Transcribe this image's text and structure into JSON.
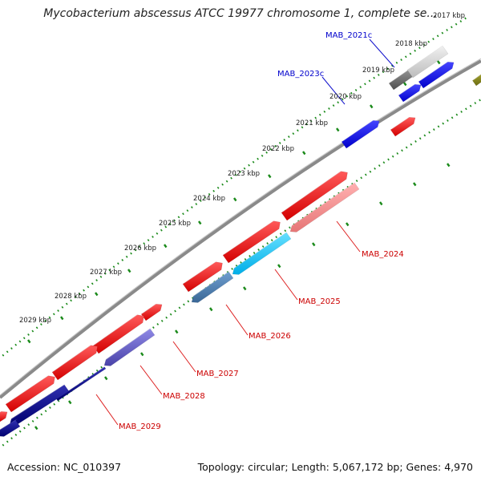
{
  "title": "Mycobacterium abscessus ATCC 19977 chromosome 1, complete se...",
  "footer": {
    "accession": "Accession: NC_010397",
    "summary": "Topology: circular; Length: 5,067,172 bp; Genes: 4,970"
  },
  "kbp_ticks": [
    "2029 kbp",
    "2028 kbp",
    "2027 kbp",
    "2026 kbp",
    "2025 kbp",
    "2024 kbp",
    "2023 kbp",
    "2022 kbp",
    "2021 kbp",
    "2020 kbp",
    "2019 kbp",
    "2018 kbp",
    "2017 kbp"
  ],
  "gene_labels": {
    "forward": [
      "MAB_2021c",
      "MAB_2023c"
    ],
    "reverse": [
      "MAB_2024",
      "MAB_2025",
      "MAB_2026",
      "MAB_2027",
      "MAB_2028",
      "MAB_2029"
    ]
  },
  "colors": {
    "backbone": "#8a8a8a",
    "dotted_ring": "#1a8a1a",
    "label_forward": "#0000cc",
    "label_reverse": "#cc0000",
    "leader_forward": "#1010cc",
    "leader_reverse": "#dd2020"
  }
}
